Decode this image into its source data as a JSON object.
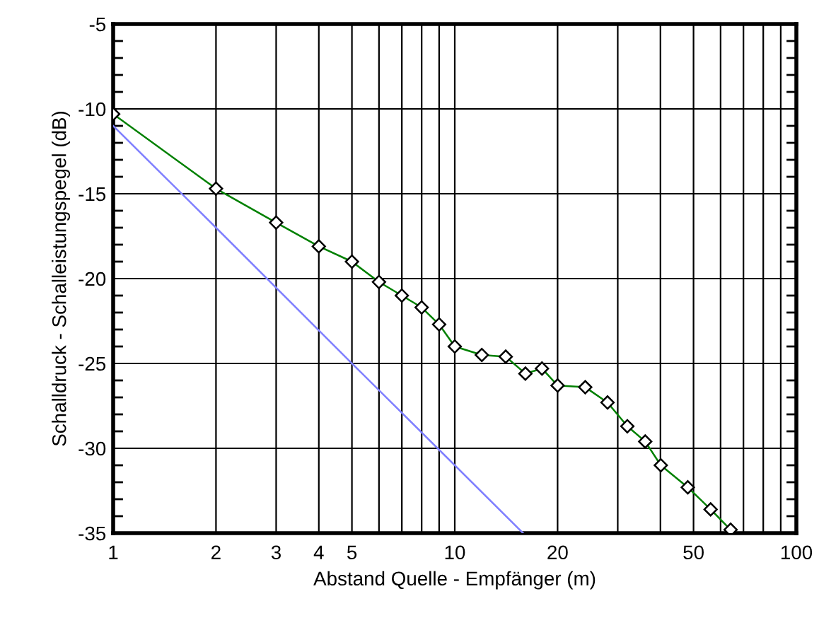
{
  "chart_data": {
    "type": "line",
    "xlabel": "Abstand Quelle - Empfänger (m)",
    "ylabel": "Schalldruck - Schalleistungspegel (dB)",
    "log": "x",
    "grid": true,
    "xlim": [
      1,
      100
    ],
    "ylim": [
      -35,
      -5
    ],
    "xticks": [
      1,
      2,
      3,
      4,
      5,
      {
        "value": 6,
        "label": null
      },
      {
        "value": 7,
        "label": null
      },
      {
        "value": 8,
        "label": null
      },
      {
        "value": 9,
        "label": null
      },
      10,
      20,
      {
        "value": 30,
        "label": null
      },
      {
        "value": 40,
        "label": null
      },
      50,
      {
        "value": 60,
        "label": null
      },
      {
        "value": 70,
        "label": null
      },
      {
        "value": 80,
        "label": null
      },
      {
        "value": 90,
        "label": null
      },
      100
    ],
    "yticks": [
      -35,
      -30,
      -25,
      -20,
      -15,
      -10,
      -5
    ],
    "series": [
      {
        "color": "#008000",
        "marker": "diamond",
        "x": [
          1,
          2,
          3,
          4,
          5,
          6,
          7,
          8,
          9,
          10,
          12,
          14.1,
          16.1,
          18,
          20,
          24.1,
          28,
          32,
          36.1,
          40.1,
          48.1,
          56.1,
          64.2
        ],
        "values": [
          -10.3,
          -14.7,
          -16.7,
          -18.1,
          -19.0,
          -20.2,
          -21.0,
          -21.7,
          -22.7,
          -24.0,
          -24.5,
          -24.6,
          -25.6,
          -25.3,
          -26.3,
          -26.4,
          -27.3,
          -28.7,
          -29.6,
          -31.0,
          -32.3,
          -33.6,
          -34.8
        ]
      },
      {
        "color": "#8080ff",
        "marker": "none",
        "x": [
          1,
          2,
          5,
          10,
          15.85
        ],
        "values": [
          -11.0,
          -17.0,
          -25.0,
          -31.0,
          -35.0
        ]
      }
    ]
  }
}
